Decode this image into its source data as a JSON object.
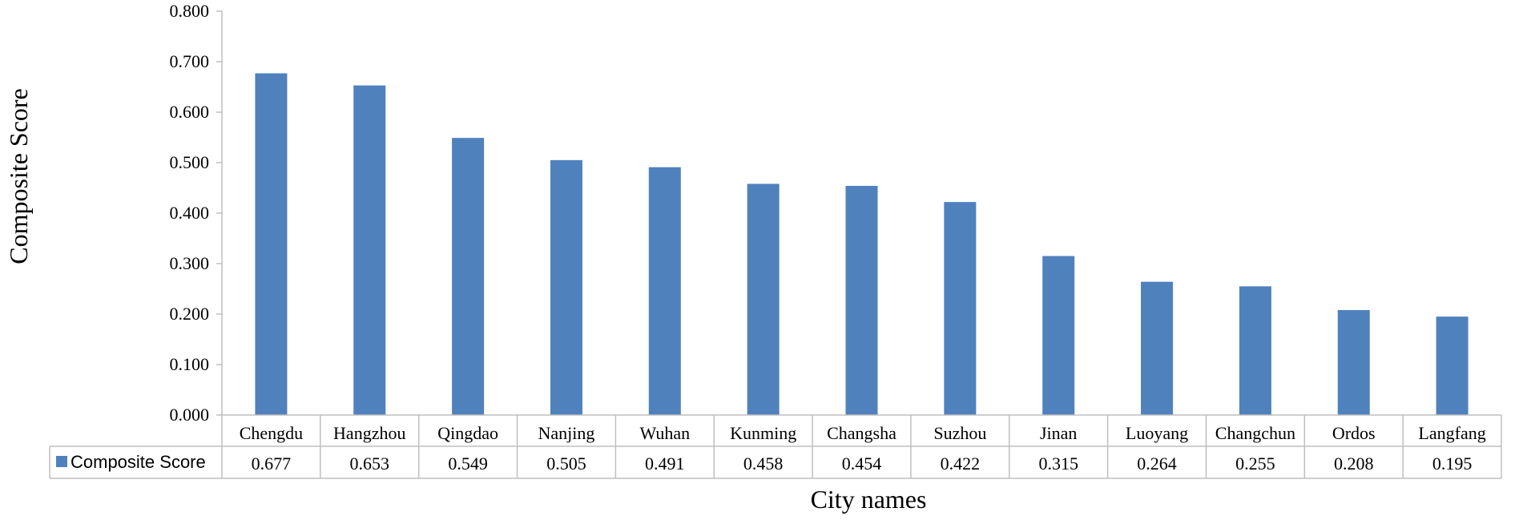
{
  "chart_data": {
    "type": "bar",
    "categories": [
      "Chengdu",
      "Hangzhou",
      "Qingdao",
      "Nanjing",
      "Wuhan",
      "Kunming",
      "Changsha",
      "Suzhou",
      "Jinan",
      "Luoyang",
      "Changchun",
      "Ordos",
      "Langfang"
    ],
    "series": [
      {
        "name": "Composite Score",
        "values": [
          0.677,
          0.653,
          0.549,
          0.505,
          0.491,
          0.458,
          0.454,
          0.422,
          0.315,
          0.264,
          0.255,
          0.208,
          0.195
        ],
        "value_labels": [
          "0.677",
          "0.653",
          "0.549",
          "0.505",
          "0.491",
          "0.458",
          "0.454",
          "0.422",
          "0.315",
          "0.264",
          "0.255",
          "0.208",
          "0.195"
        ]
      }
    ],
    "ylim": [
      0,
      0.8
    ],
    "yticks": [
      "0.000",
      "0.100",
      "0.200",
      "0.300",
      "0.400",
      "0.500",
      "0.600",
      "0.700",
      "0.800"
    ],
    "xlabel": "City names",
    "ylabel": "Composite Score",
    "grid": false,
    "legend": "data-table-left",
    "colors": {
      "bar": "#4F81BD",
      "axis": "#BFBFBF"
    }
  }
}
